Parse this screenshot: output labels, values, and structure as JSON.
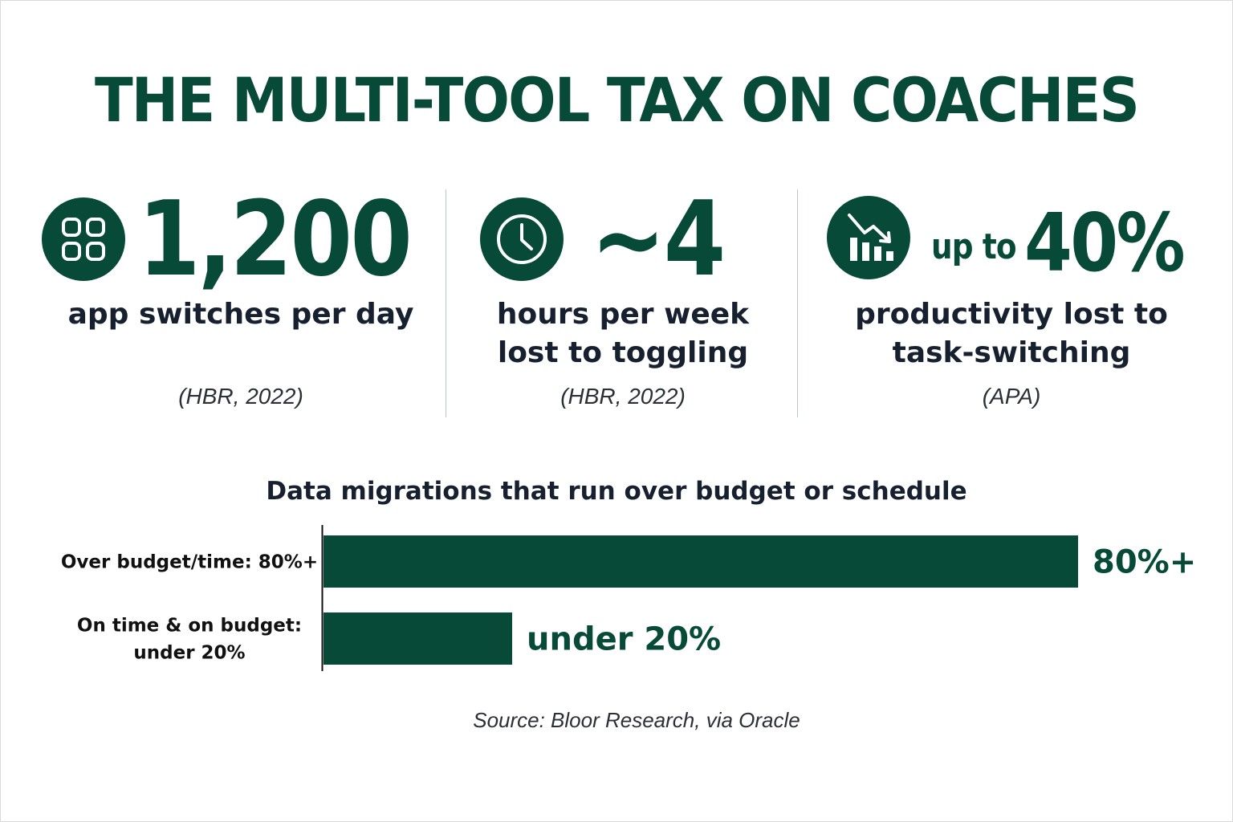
{
  "title": "THE MULTI-TOOL TAX ON COACHES",
  "stats": [
    {
      "icon": "grid-apps-icon",
      "prefix": "",
      "value": "1,200",
      "description": [
        "app switches per day"
      ],
      "source": "(HBR, 2022)"
    },
    {
      "icon": "clock-icon",
      "prefix": "",
      "value": "~4",
      "description": [
        "hours per week",
        "lost to toggling"
      ],
      "source": "(HBR, 2022)"
    },
    {
      "icon": "declining-chart-icon",
      "prefix": "up to",
      "value": "40%",
      "description": [
        "productivity lost to",
        "task-switching"
      ],
      "source": "(APA)"
    }
  ],
  "colors": {
    "accent": "#064a37",
    "text": "#16202e"
  },
  "chart_data": {
    "type": "bar",
    "orientation": "horizontal",
    "title": "Data migrations that run over budget or schedule",
    "categories": [
      "Over budget/time: 80%+",
      "On time & on budget: under 20%"
    ],
    "category_lines": [
      [
        "Over budget/time: 80%+"
      ],
      [
        "On time & on budget:",
        "under 20%"
      ]
    ],
    "values": [
      80,
      20
    ],
    "data_labels": [
      "80%+",
      "under 20%"
    ],
    "xlim": [
      0,
      100
    ],
    "grid": false,
    "legend": "none",
    "source": "Source: Bloor Research, via Oracle"
  }
}
